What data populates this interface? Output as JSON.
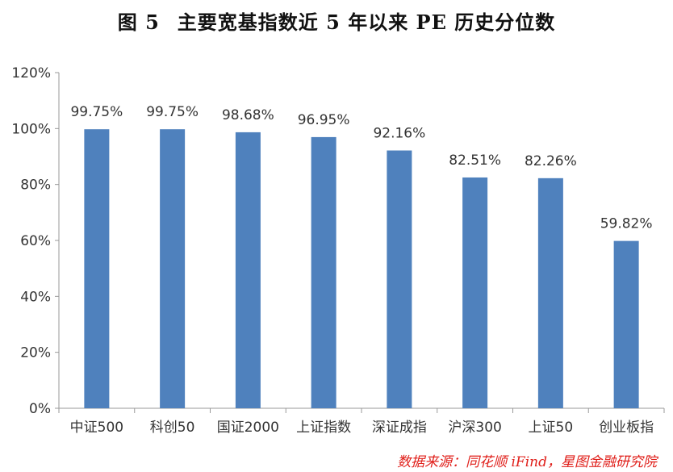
{
  "figure": {
    "label": "图 5",
    "title": "主要宽基指数近 5 年以来 PE 历史分位数"
  },
  "source": "数据来源：同花顺 iFind，星图金融研究院",
  "chart_data": {
    "type": "bar",
    "categories": [
      "中证500",
      "科创50",
      "国证2000",
      "上证指数",
      "深证成指",
      "沪深300",
      "上证50",
      "创业板指"
    ],
    "values": [
      99.75,
      99.75,
      98.68,
      96.95,
      92.16,
      82.51,
      82.26,
      59.82
    ],
    "data_labels": [
      "99.75%",
      "99.75%",
      "98.68%",
      "96.95%",
      "92.16%",
      "82.51%",
      "82.26%",
      "59.82%"
    ],
    "y_ticks": [
      0,
      20,
      40,
      60,
      80,
      100,
      120
    ],
    "y_tick_labels": [
      "0%",
      "20%",
      "40%",
      "60%",
      "80%",
      "100%",
      "120%"
    ],
    "ylim": [
      0,
      120
    ],
    "grid": false,
    "bar_color": "#4f81bd"
  }
}
